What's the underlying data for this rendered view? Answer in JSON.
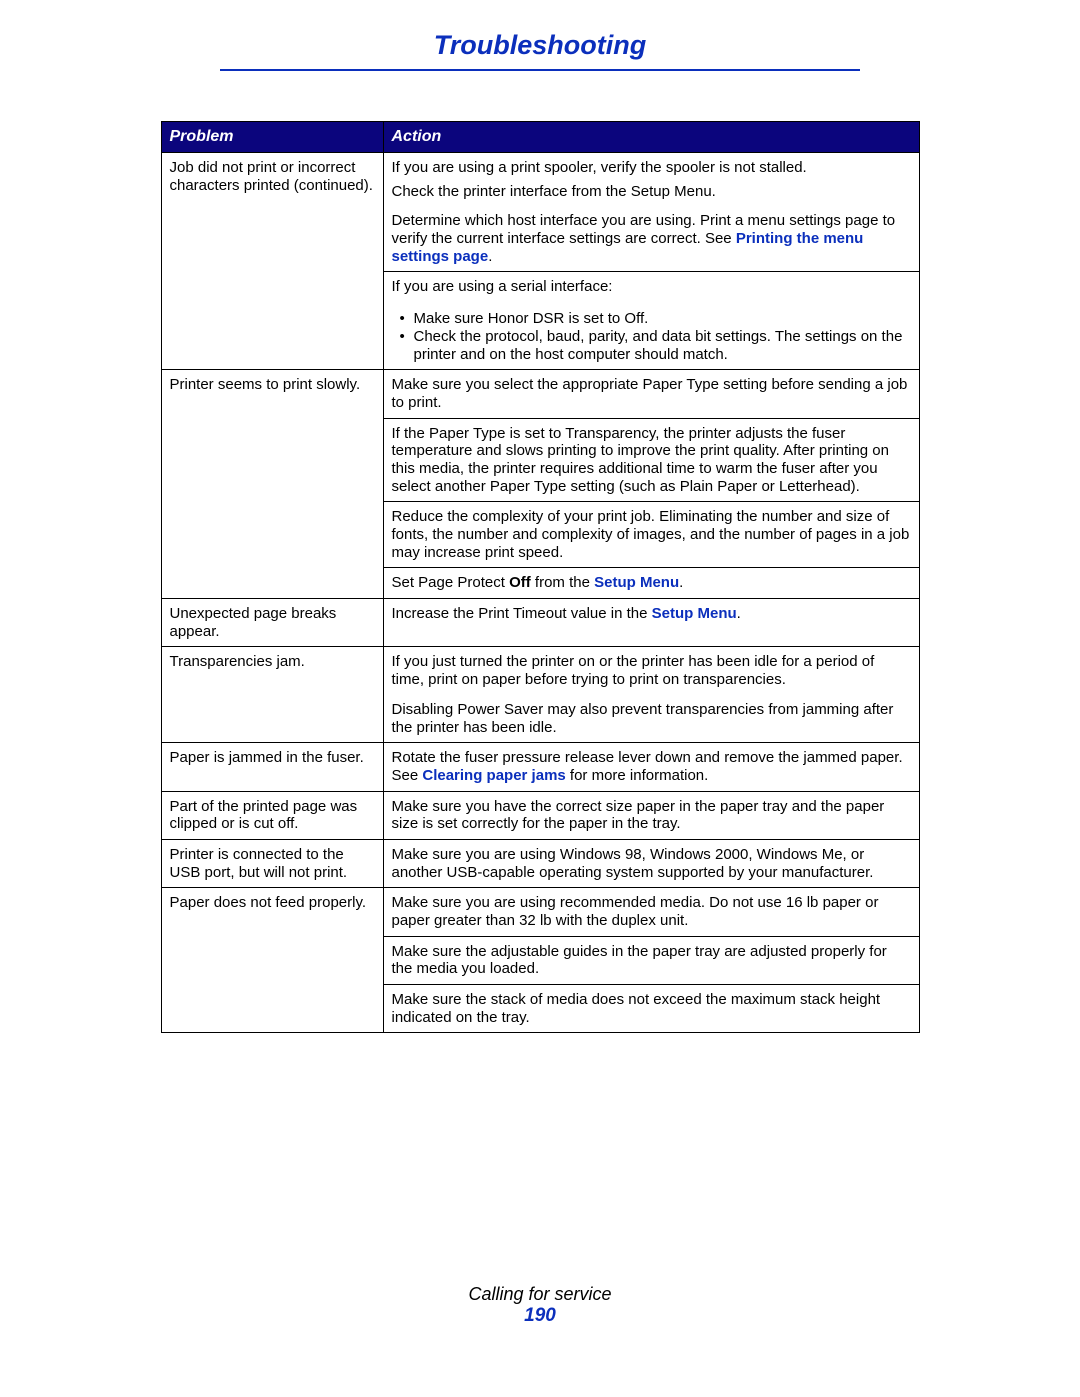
{
  "colors": {
    "title": "#0b2fbc",
    "hr": "#0b2fbc",
    "header_bg": "#0b057d",
    "link": "#0b2fbc",
    "page_num": "#0b2fbc",
    "text": "#000000",
    "white": "#ffffff"
  },
  "page_title": "Troubleshooting",
  "table": {
    "headers": {
      "problem": "Problem",
      "action": "Action"
    },
    "r1": {
      "problem": "Job did not print or incorrect characters printed (continued).",
      "a1": "If you are using a print spooler, verify the spooler is not stalled.",
      "a2": "Check the printer interface from the Setup Menu.",
      "a3_pre": "Determine which host interface you are using. Print a menu settings page to verify the current interface settings are correct. See ",
      "a3_link": "Printing the menu settings page",
      "a3_post": ".",
      "a4": "If you are using a serial interface:",
      "a4_b1": "Make sure Honor DSR is set to Off.",
      "a4_b2": "Check the protocol, baud, parity, and data bit settings. The settings on the printer and on the host computer should match."
    },
    "r2": {
      "problem": "Printer seems to print slowly.",
      "a1": "Make sure you select the appropriate Paper Type setting before sending a job to print.",
      "a2": "If the Paper Type is set to Transparency, the printer adjusts the fuser temperature and slows printing to improve the print quality. After printing on this media, the printer requires additional time to warm the fuser after you select another Paper Type setting (such as Plain Paper or Letterhead).",
      "a3": "Reduce the complexity of your print job. Eliminating the number and size of fonts, the number and complexity of images, and the number of pages in a job may increase print speed.",
      "a4_pre": "Set Page Protect ",
      "a4_bold": "Off",
      "a4_mid": " from the ",
      "a4_link": "Setup Menu",
      "a4_post": "."
    },
    "r3": {
      "problem": "Unexpected page breaks appear.",
      "a_pre": "Increase the Print Timeout value in the ",
      "a_link": "Setup Menu",
      "a_post": "."
    },
    "r4": {
      "problem": "Transparencies jam.",
      "a1": "If you just turned the printer on or the printer has been idle for a period of time, print on paper before trying to print on transparencies.",
      "a2": "Disabling Power Saver may also prevent transparencies from jamming after the printer has been idle."
    },
    "r5": {
      "problem": "Paper is jammed in the fuser.",
      "a_pre": "Rotate the fuser pressure release lever down and remove the jammed paper. See ",
      "a_link": "Clearing paper jams",
      "a_post": " for more information."
    },
    "r6": {
      "problem": "Part of the printed page was clipped or is cut off.",
      "a": "Make sure you have the correct size paper in the paper tray and the paper size is set correctly for the paper in the tray."
    },
    "r7": {
      "problem": "Printer is connected to the USB port, but will not print.",
      "a": "Make sure you are using Windows 98, Windows 2000, Windows Me, or another USB-capable operating system supported by your manufacturer."
    },
    "r8": {
      "problem": "Paper does not feed properly.",
      "a1": "Make sure you are using recommended media. Do not use 16 lb paper or paper greater than 32 lb with the duplex unit.",
      "a2": "Make sure the adjustable guides in the paper tray are adjusted properly for the media you loaded.",
      "a3": "Make sure the stack of media does not exceed the maximum stack height indicated on the tray."
    }
  },
  "footer": {
    "section": "Calling for service",
    "page": "190"
  }
}
